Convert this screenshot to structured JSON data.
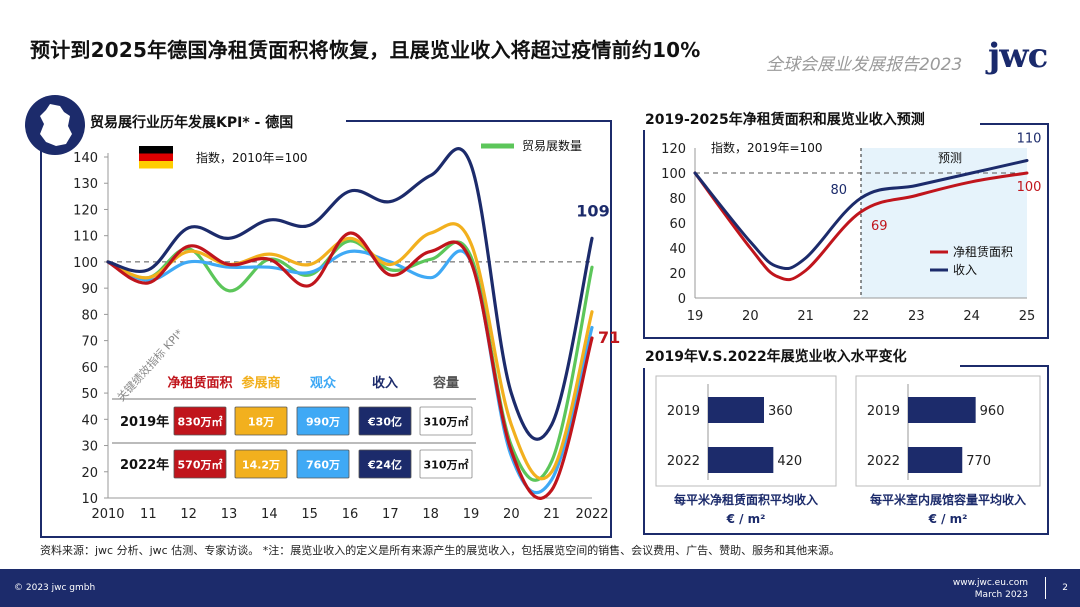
{
  "header": {
    "title": "预计到2025年德国净租赁面积将恢复，且展览业收入将超过疫情前约10%",
    "report_name": "全球会展业发展报告2023",
    "logo_text": "jwc"
  },
  "footer": {
    "copyright": "© 2023 jwc gmbh",
    "url": "www.jwc.eu.com",
    "date": "March 2023",
    "page": "2"
  },
  "source_note": "资料来源：jwc 分析、jwc 估测、专家访谈。 *注：展览业收入的定义是所有来源产生的展览收入，包括展览空间的销售、会议费用、广告、赞助、服务和其他来源。",
  "colors": {
    "navy": "#1c2b6b",
    "red": "#c0151c",
    "orange": "#f2b01e",
    "blue": "#3fa9f5",
    "green": "#5cc65a",
    "forecast_bg": "#e6f3fb"
  },
  "chart_data": [
    {
      "id": "kpi_germany",
      "type": "line",
      "title": "贸易展行业历年发展KPI* - 德国",
      "subtitle": "指数，2010年=100",
      "flag_icon": "germany-flag-icon",
      "map_icon": "germany-map-icon",
      "x": [
        2010,
        2011,
        2012,
        2013,
        2014,
        2015,
        2016,
        2017,
        2018,
        2019,
        2020,
        2021,
        2022
      ],
      "x_ticks": [
        "2010",
        "11",
        "12",
        "13",
        "14",
        "15",
        "16",
        "17",
        "18",
        "19",
        "20",
        "21",
        "2022"
      ],
      "ylim": [
        10,
        140
      ],
      "y_ticks": [
        10,
        20,
        30,
        40,
        50,
        60,
        70,
        80,
        90,
        100,
        110,
        120,
        130,
        140
      ],
      "reference_line": 100,
      "series": [
        {
          "key": "revenue",
          "color": "#1c2b6b",
          "values": [
            100,
            97,
            113,
            109,
            116,
            114,
            127,
            123,
            133,
            137,
            50,
            38,
            109
          ]
        },
        {
          "key": "exhibitors",
          "color": "#f2b01e",
          "values": [
            100,
            94,
            104,
            99,
            103,
            99,
            109,
            99,
            111,
            107,
            38,
            20,
            81
          ]
        },
        {
          "key": "net_rented_space",
          "color": "#c0151c",
          "values": [
            100,
            92,
            106,
            99,
            101,
            91,
            111,
            95,
            104,
            100,
            28,
            13,
            71
          ]
        },
        {
          "key": "visitors",
          "color": "#3fa9f5",
          "values": [
            100,
            93,
            100,
            98,
            98,
            96,
            104,
            100,
            94,
            100,
            26,
            17,
            75
          ]
        },
        {
          "key": "trade_fair_count",
          "name": "贸易展数量",
          "color": "#5cc65a",
          "values": [
            100,
            94,
            105,
            89,
            101,
            95,
            108,
            97,
            101,
            102,
            30,
            24,
            98
          ]
        }
      ],
      "end_labels": [
        {
          "text": "109",
          "value": 109,
          "color": "#1c2b6b"
        },
        {
          "text": "71",
          "value": 71,
          "color": "#c0151c"
        }
      ],
      "kpi_table": {
        "rotated_label": "关键绩效指标 KPI*",
        "headers": [
          {
            "text": "净租赁面积",
            "color": "#c0151c"
          },
          {
            "text": "参展商",
            "color": "#f2b01e"
          },
          {
            "text": "观众",
            "color": "#3fa9f5"
          },
          {
            "text": "收入",
            "color": "#1c2b6b"
          },
          {
            "text": "容量",
            "color": "#555555"
          }
        ],
        "rows": [
          {
            "year": "2019年",
            "cells": [
              "830万㎡",
              "18万",
              "990万",
              "€30亿",
              "310万㎡"
            ]
          },
          {
            "year": "2022年",
            "cells": [
              "570万㎡",
              "14.2万",
              "760万",
              "€24亿",
              "310万㎡"
            ]
          }
        ],
        "cell_fills": [
          "#c0151c",
          "#f2b01e",
          "#3fa9f5",
          "#1c2b6b",
          "#ffffff"
        ],
        "cell_text_colors": [
          "#ffffff",
          "#ffffff",
          "#ffffff",
          "#ffffff",
          "#111111"
        ]
      }
    },
    {
      "id": "forecast",
      "type": "line",
      "title": "2019-2025年净租赁面积和展览业收入预测",
      "subtitle": "指数，2019年=100",
      "forecast_label": "预测",
      "x": [
        2019,
        2020,
        2021,
        2022,
        2023,
        2024,
        2025
      ],
      "x_ticks": [
        "19",
        "20",
        "21",
        "22",
        "23",
        "24",
        "25"
      ],
      "ylim": [
        0,
        120
      ],
      "y_ticks": [
        0,
        20,
        40,
        60,
        80,
        100,
        120
      ],
      "reference_line": 100,
      "forecast_start": 2022,
      "series": [
        {
          "key": "space",
          "name": "净租赁面积",
          "color": "#c0151c",
          "points": [
            [
              2019,
              100
            ],
            [
              2020,
              40
            ],
            [
              2020.5,
              17
            ],
            [
              2021,
              22
            ],
            [
              2022,
              69
            ],
            [
              2023,
              82
            ],
            [
              2024,
              93
            ],
            [
              2025,
              100
            ]
          ]
        },
        {
          "key": "revenue",
          "name": "收入",
          "color": "#1c2b6b",
          "points": [
            [
              2019,
              100
            ],
            [
              2020,
              45
            ],
            [
              2020.5,
              25
            ],
            [
              2021,
              32
            ],
            [
              2022,
              80
            ],
            [
              2023,
              90
            ],
            [
              2024,
              100
            ],
            [
              2025,
              110
            ]
          ]
        }
      ],
      "point_labels": [
        {
          "text": "80",
          "x": 2022,
          "y": 80,
          "color": "#1c2b6b"
        },
        {
          "text": "69",
          "x": 2022,
          "y": 69,
          "color": "#c0151c"
        },
        {
          "text": "110",
          "x": 2025,
          "y": 110,
          "color": "#1c2b6b"
        },
        {
          "text": "100",
          "x": 2025,
          "y": 100,
          "color": "#c0151c"
        }
      ]
    },
    {
      "id": "revenue_levels",
      "type": "bar",
      "title": "2019年V.S.2022年展览业收入水平变化",
      "groups": [
        {
          "caption_line1": "每平米净租赁面积平均收入",
          "caption_line2": "€ / m²",
          "categories": [
            "2019",
            "2022"
          ],
          "values": [
            360,
            420
          ],
          "xlim": [
            0,
            450
          ]
        },
        {
          "caption_line1": "每平米室内展馆容量平均收入",
          "caption_line2": "€ / m²",
          "categories": [
            "2019",
            "2022"
          ],
          "values": [
            960,
            770
          ],
          "xlim": [
            0,
            1050
          ]
        }
      ]
    }
  ]
}
